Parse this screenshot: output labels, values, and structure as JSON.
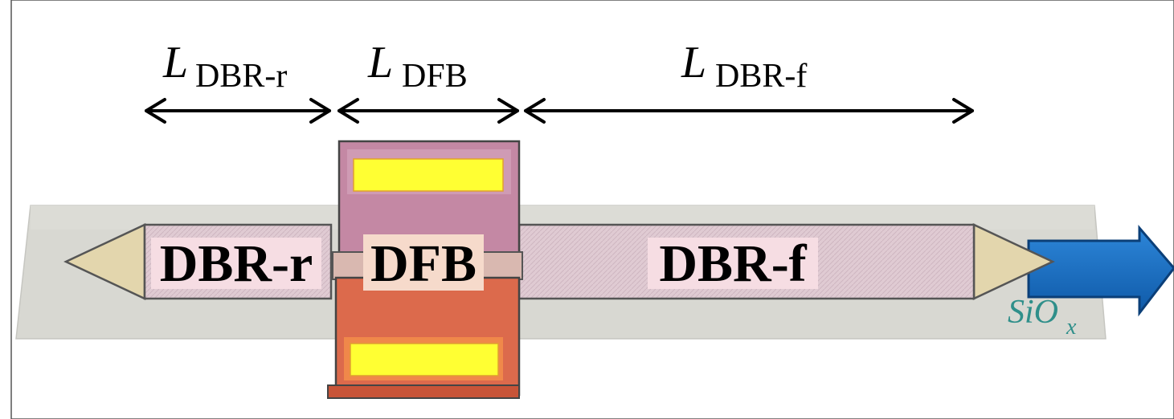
{
  "labels": {
    "l_dbr_r_main": "L",
    "l_dbr_r_sub": "DBR-r",
    "l_dfb_main": "L",
    "l_dfb_sub": "DFB",
    "l_dbr_f_main": "L",
    "l_dbr_f_sub": "DBR-f",
    "dbr_r": "DBR-r",
    "dfb": "DFB",
    "dbr_f": "DBR-f",
    "sio_main": "SiO",
    "sio_sub": "x"
  },
  "colors": {
    "substrate": "#d6d6d0",
    "waveguide": "#e3cfd6",
    "taper": "#e3d6ad",
    "chip_top": "#c488a4",
    "chip_bottom": "#dc6a4c",
    "contact": "#ffff33",
    "output_arrow": "#1b6fbf",
    "sio_text": "#2f8f8a",
    "label_bg": "#f6dde3"
  }
}
